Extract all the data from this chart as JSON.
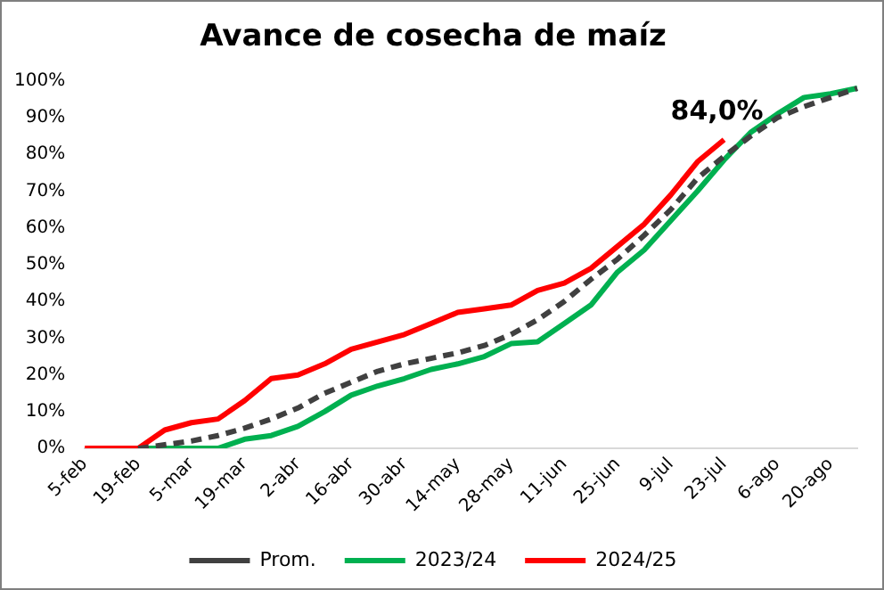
{
  "chart_data": {
    "type": "line",
    "title": "Avance de cosecha de maíz",
    "categories": [
      "5-feb",
      null,
      "19-feb",
      null,
      "5-mar",
      null,
      "19-mar",
      null,
      "2-abr",
      null,
      "16-abr",
      null,
      "30-abr",
      null,
      "14-may",
      null,
      "28-may",
      null,
      "11-jun",
      null,
      "25-jun",
      null,
      "9-jul",
      null,
      "23-jul",
      null,
      "6-ago",
      null,
      "20-ago",
      null
    ],
    "series": [
      {
        "name": "Prom.",
        "color": "#404040",
        "line_style": "dashed",
        "values": [
          null,
          null,
          0,
          1,
          2,
          3.5,
          5.5,
          8,
          11,
          15,
          18,
          21,
          23,
          24.5,
          26,
          28,
          31,
          35,
          40,
          46,
          51.5,
          58,
          65,
          73.5,
          79.5,
          85,
          90,
          93,
          95.5,
          98
        ]
      },
      {
        "name": "2023/24",
        "color": "#00b050",
        "values": [
          null,
          null,
          0,
          0,
          0,
          0,
          2.5,
          3.5,
          6,
          10,
          14.5,
          17,
          19,
          21.5,
          23,
          25,
          28.5,
          29,
          34,
          39,
          48,
          54,
          62,
          70,
          78.5,
          86,
          91,
          95.5,
          96.5,
          98
        ]
      },
      {
        "name": "2024/25",
        "color": "#ff0000",
        "values": [
          0,
          0,
          0,
          5,
          7,
          8,
          13,
          19,
          20,
          23,
          27,
          29,
          31,
          34,
          37,
          38,
          39,
          43,
          45,
          49,
          55,
          61,
          69,
          78,
          84,
          null,
          null,
          null,
          null,
          null
        ],
        "value_labels": [
          null,
          null,
          null,
          null,
          null,
          null,
          null,
          null,
          null,
          null,
          null,
          null,
          null,
          null,
          null,
          null,
          null,
          null,
          null,
          null,
          null,
          null,
          null,
          null,
          "84,0%",
          null,
          null,
          null,
          null,
          null
        ]
      }
    ],
    "ylim": [
      0,
      100
    ],
    "yticks": [
      {
        "value": 0,
        "label": "0%"
      },
      {
        "value": 10,
        "label": "10%"
      },
      {
        "value": 20,
        "label": "20%"
      },
      {
        "value": 30,
        "label": "30%"
      },
      {
        "value": 40,
        "label": "40%"
      },
      {
        "value": 50,
        "label": "50%"
      },
      {
        "value": 60,
        "label": "60%"
      },
      {
        "value": 70,
        "label": "70%"
      },
      {
        "value": 80,
        "label": "80%"
      },
      {
        "value": 90,
        "label": "90%"
      },
      {
        "value": 100,
        "label": "100%"
      }
    ],
    "grid": false,
    "legend": "bottom",
    "marker": "none"
  }
}
